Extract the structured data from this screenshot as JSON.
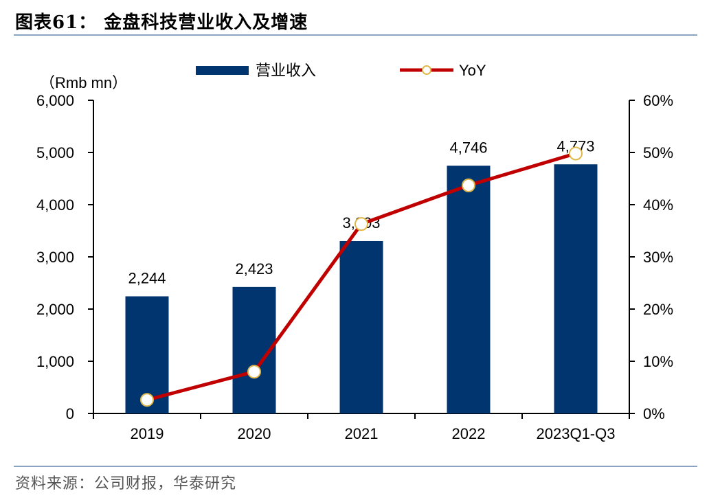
{
  "figure_title": "图表61： 金盘科技营业收入及增速",
  "source": "资料来源：公司财报，华泰研究",
  "colors": {
    "bar": "#003570",
    "line": "#c00000",
    "marker_fill": "#ffffff",
    "marker_stroke": "#e0b84a",
    "rule": "#8aa3c2"
  },
  "chart_data": {
    "type": "bar",
    "categories": [
      "2019",
      "2020",
      "2021",
      "2022",
      "2023Q1-Q3"
    ],
    "unit_label": "（Rmb mn）",
    "legend_position": "top-center",
    "grid": false,
    "y_left": {
      "ticks": [
        "0",
        "1,000",
        "2,000",
        "3,000",
        "4,000",
        "5,000",
        "6,000"
      ],
      "ylim": [
        0,
        6000
      ]
    },
    "y_right": {
      "ticks": [
        "0%",
        "10%",
        "20%",
        "30%",
        "40%",
        "50%",
        "60%"
      ],
      "ylim": [
        0,
        60
      ]
    },
    "series": [
      {
        "name": "营业收入",
        "type": "bar",
        "axis": "left",
        "values": [
          2244,
          2423,
          3303,
          4746,
          4773
        ],
        "labels": [
          "2,244",
          "2,423",
          "3,303",
          "4,746",
          "4,773"
        ]
      },
      {
        "name": "YoY",
        "type": "line",
        "axis": "right",
        "values": [
          2.6,
          8.0,
          36.3,
          43.7,
          49.8
        ]
      }
    ]
  }
}
